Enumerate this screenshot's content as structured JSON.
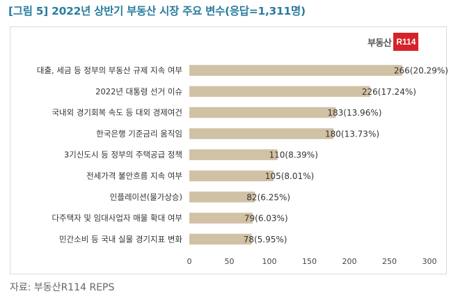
{
  "header": {
    "title": "[그림 5] 2022년 상반기 부동산 시장 주요 변수(응답=1,311명)"
  },
  "logo": {
    "text": "부동산",
    "box": "R114"
  },
  "footer": {
    "source": "자료: 부동산R114 REPS"
  },
  "colors": {
    "bar": "#d1c1a5",
    "title": "#2a7c9e",
    "logo_red": "#d6232a"
  },
  "chart_data": {
    "type": "bar",
    "orientation": "horizontal",
    "categories": [
      "대출, 세금 등 정부의 부동산 규제 지속 여부",
      "2022년 대통령 선거 이슈",
      "국내외 경기회복 속도 등 대외 경제여건",
      "한국은행 기준금리 움직임",
      "3기신도시 등 정부의 주택공급 정책",
      "전세가격 불안흐름 지속 여부",
      "인플레이션(물가상승)",
      "다주택자 및 임대사업자 매물 확대 여부",
      "민간소비 등 국내 실물 경기지표 변화"
    ],
    "values": [
      266,
      226,
      183,
      180,
      110,
      105,
      82,
      79,
      78
    ],
    "data_labels": [
      "266(20.29%)",
      "226(17.24%)",
      "183(13.96%)",
      "180(13.73%)",
      "110(8.39%)",
      "105(8.01%)",
      "82(6.25%)",
      "79(6.03%)",
      "78(5.95%)"
    ],
    "xlim": [
      0,
      300
    ],
    "xticks": [
      "0",
      "50",
      "100",
      "150",
      "200",
      "250",
      "300"
    ],
    "grid": false,
    "legend": "none"
  }
}
